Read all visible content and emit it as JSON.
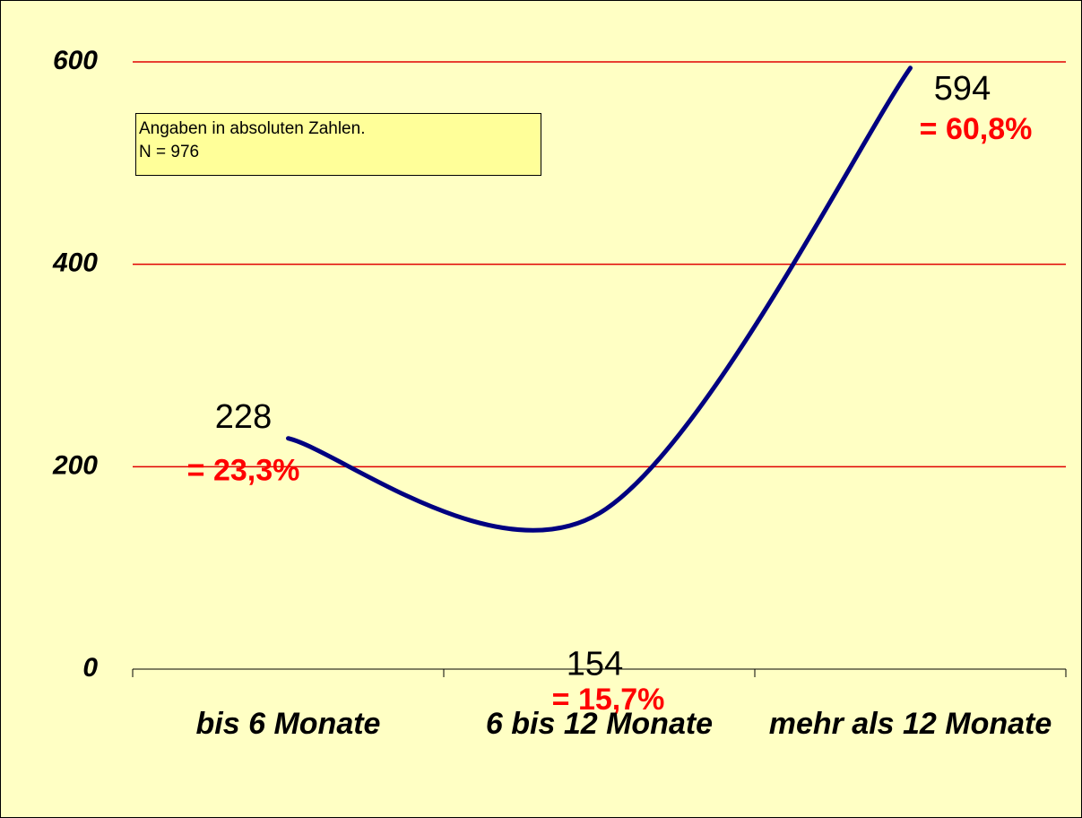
{
  "chart_data": {
    "type": "line",
    "categories": [
      "bis 6 Monate",
      "6 bis 12 Monate",
      "mehr als 12 Monate"
    ],
    "values": [
      228,
      154,
      594
    ],
    "percent_labels": [
      "= 23,3%",
      "= 15,7%",
      "= 60,8%"
    ],
    "color": "#000080",
    "grid_color": "#e00000",
    "ylim": [
      0,
      600
    ],
    "yticks": [
      0,
      200,
      400,
      600
    ],
    "grid": true,
    "annotation": [
      "Angaben in absoluten Zahlen.",
      "N = 976"
    ]
  }
}
